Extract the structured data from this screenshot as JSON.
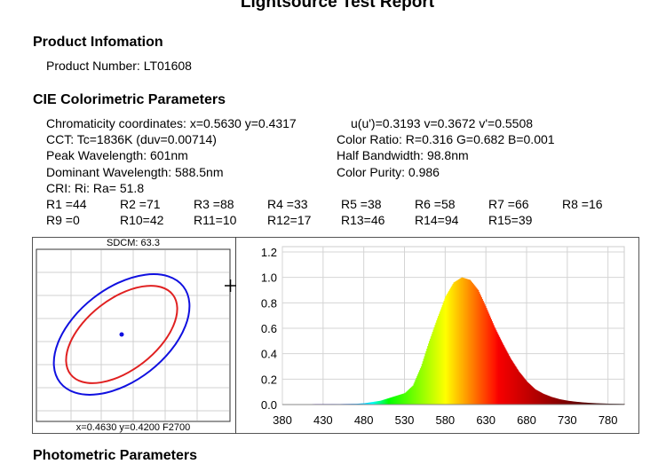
{
  "report_title": "Lightsource Test Report",
  "product": {
    "heading": "Product Infomation",
    "number": "Product Number: LT01608"
  },
  "cie": {
    "heading": "CIE Colorimetric Parameters",
    "chromaticity": "Chromaticity coordinates: x=0.5630 y=0.4317",
    "uv": "u(u')=0.3193 v=0.3672 v'=0.5508",
    "cct": "CCT: Tc=1836K (duv=0.00714)",
    "color_ratio": "Color Ratio: R=0.316  G=0.682  B=0.001",
    "peak": "Peak Wavelength: 601nm",
    "half_bandwidth": "Half Bandwidth: 98.8nm",
    "dominant": "Dominant Wavelength: 588.5nm",
    "purity": "Color Purity: 0.986",
    "cri": "CRI: Ri: Ra= 51.8",
    "ri": [
      "R1 =44",
      "R2 =71",
      "R3 =88",
      "R4 =33",
      "R5 =38",
      "R6 =58",
      "R7 =66",
      "R8 =16",
      "R9 =0",
      "R10=42",
      "R11=10",
      "R12=17",
      "R13=46",
      "R14=94",
      "R15=39"
    ]
  },
  "sdcm": {
    "label": "SDCM:  63.3",
    "reference": "x=0.4630 y=0.4200 F2700",
    "inner_ellipse_color": "#e02020",
    "outer_ellipse_color": "#1010e0",
    "point_color": "#1010e0"
  },
  "photometric_heading": "Photometric Parameters",
  "chart_data": {
    "type": "area",
    "title": "",
    "xlabel": "",
    "ylabel": "",
    "xlim": [
      380,
      800
    ],
    "ylim": [
      0,
      1.2
    ],
    "grid": true,
    "x_ticks": [
      "380",
      "430",
      "480",
      "530",
      "580",
      "630",
      "680",
      "730",
      "780"
    ],
    "y_ticks": [
      "0.0",
      "0.2",
      "0.4",
      "0.6",
      "0.8",
      "1.0",
      "1.2"
    ],
    "fill": "wavelength-colored spectrum",
    "x": [
      380,
      390,
      400,
      410,
      420,
      430,
      440,
      450,
      460,
      470,
      480,
      490,
      500,
      510,
      520,
      530,
      540,
      550,
      560,
      570,
      580,
      590,
      600,
      610,
      620,
      630,
      640,
      650,
      660,
      670,
      680,
      690,
      700,
      710,
      720,
      730,
      740,
      750,
      760,
      770,
      780,
      790,
      800
    ],
    "values": [
      0.003,
      0.003,
      0.003,
      0.003,
      0.004,
      0.004,
      0.004,
      0.004,
      0.005,
      0.006,
      0.01,
      0.02,
      0.03,
      0.05,
      0.07,
      0.09,
      0.15,
      0.3,
      0.5,
      0.68,
      0.85,
      0.96,
      1.0,
      0.98,
      0.9,
      0.76,
      0.61,
      0.48,
      0.36,
      0.26,
      0.18,
      0.12,
      0.085,
      0.06,
      0.042,
      0.03,
      0.022,
      0.016,
      0.012,
      0.009,
      0.007,
      0.006,
      0.005
    ]
  }
}
